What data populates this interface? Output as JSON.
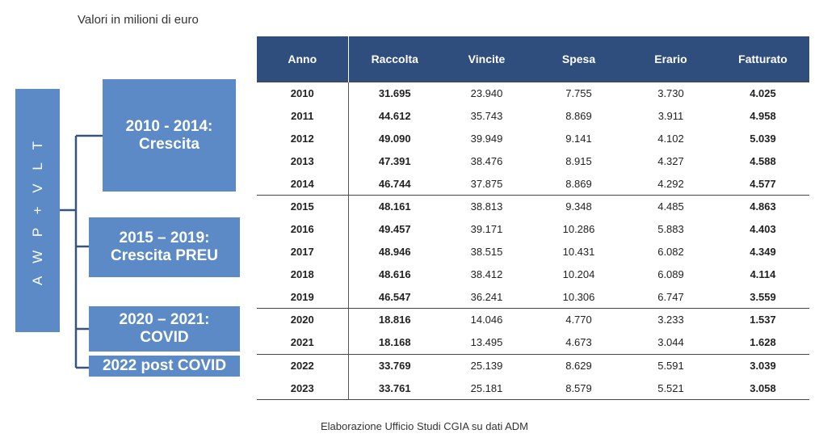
{
  "caption": "Valori in milioni di euro",
  "source": "Elaborazione Ufficio Studi CGIA su dati ADM",
  "side_label": "A W P + V L T",
  "periods": {
    "p1": [
      "2010 - 2014:",
      "Crescita"
    ],
    "p2": [
      "2015 – 2019:",
      "Crescita PREU"
    ],
    "p3": [
      "2020 – 2021:",
      "COVID"
    ],
    "p4": [
      "2022 post COVID"
    ]
  },
  "table": {
    "headers": [
      "Anno",
      "Raccolta",
      "Vincite",
      "Spesa",
      "Erario",
      "Fatturato"
    ],
    "rows": [
      [
        "2010",
        "31.695",
        "23.940",
        "7.755",
        "3.730",
        "4.025"
      ],
      [
        "2011",
        "44.612",
        "35.743",
        "8.869",
        "3.911",
        "4.958"
      ],
      [
        "2012",
        "49.090",
        "39.949",
        "9.141",
        "4.102",
        "5.039"
      ],
      [
        "2013",
        "47.391",
        "38.476",
        "8.915",
        "4.327",
        "4.588"
      ],
      [
        "2014",
        "46.744",
        "37.875",
        "8.869",
        "4.292",
        "4.577"
      ],
      [
        "2015",
        "48.161",
        "38.813",
        "9.348",
        "4.485",
        "4.863"
      ],
      [
        "2016",
        "49.457",
        "39.171",
        "10.286",
        "5.883",
        "4.403"
      ],
      [
        "2017",
        "48.946",
        "38.515",
        "10.431",
        "6.082",
        "4.349"
      ],
      [
        "2018",
        "48.616",
        "38.412",
        "10.204",
        "6.089",
        "4.114"
      ],
      [
        "2019",
        "46.547",
        "36.241",
        "10.306",
        "6.747",
        "3.559"
      ],
      [
        "2020",
        "18.816",
        "14.046",
        "4.770",
        "3.233",
        "1.537"
      ],
      [
        "2021",
        "18.168",
        "13.495",
        "4.673",
        "3.044",
        "1.628"
      ],
      [
        "2022",
        "33.769",
        "25.139",
        "8.629",
        "5.591",
        "3.039"
      ],
      [
        "2023",
        "33.761",
        "25.181",
        "8.579",
        "5.521",
        "3.058"
      ]
    ]
  },
  "colors": {
    "box_fill": "#5b8ac6",
    "header_fill": "#2f4e7e",
    "connector": "#35557f"
  }
}
